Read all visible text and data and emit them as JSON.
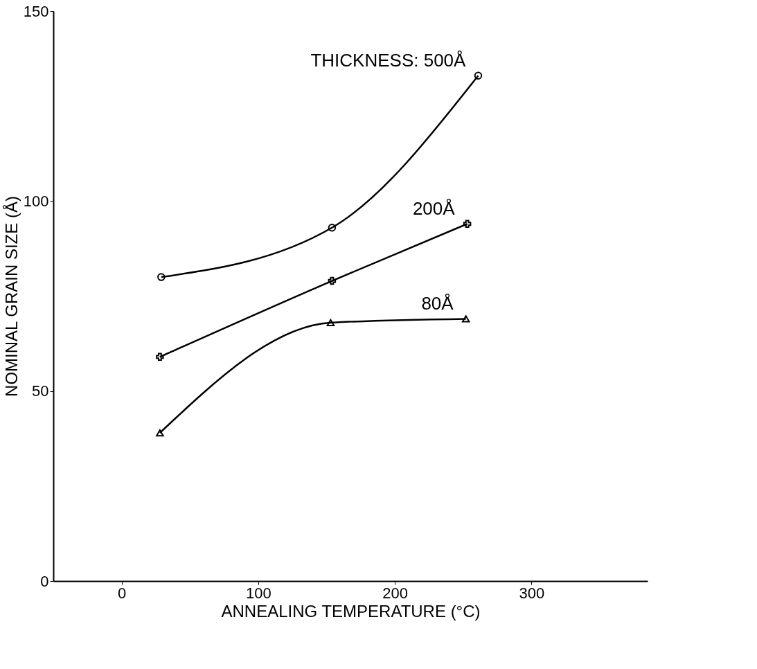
{
  "chart_data": {
    "type": "line",
    "xlabel": "ANNEALING TEMPERATURE (°C)",
    "ylabel": "NOMINAL GRAIN SIZE (Å)",
    "xlim": [
      -50,
      385
    ],
    "xticks": [
      0,
      100,
      200,
      300
    ],
    "ylim": [
      0,
      150
    ],
    "yticks": [
      0,
      50,
      100,
      150
    ],
    "grid": false,
    "line_style": "solid",
    "series": [
      {
        "name": "THICKNESS: 500Å",
        "color": "#000000",
        "marker": "circle",
        "x": [
          29,
          154,
          261
        ],
        "values": [
          80,
          93,
          133
        ]
      },
      {
        "name": "200Å",
        "color": "#000000",
        "marker": "cross",
        "x": [
          28,
          154,
          253
        ],
        "values": [
          59,
          79,
          94
        ]
      },
      {
        "name": "80Å",
        "color": "#000000",
        "marker": "triangle",
        "x": [
          28,
          153,
          252
        ],
        "values": [
          39,
          68,
          69
        ]
      }
    ]
  }
}
